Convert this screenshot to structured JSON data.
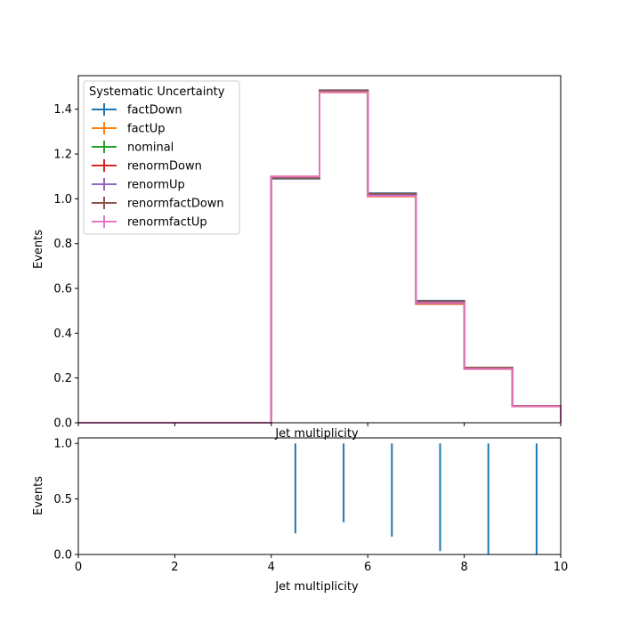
{
  "chart_data": [
    {
      "type": "line",
      "step": true,
      "xlabel": "Jet multiplicity",
      "ylabel": "Events",
      "xlim": [
        0,
        10
      ],
      "ylim": [
        0,
        1.55
      ],
      "grid": false,
      "bin_edges": [
        0,
        1,
        2,
        3,
        4,
        5,
        6,
        7,
        8,
        9,
        10
      ],
      "yticks": [
        "0.0",
        "0.2",
        "0.4",
        "0.6",
        "0.8",
        "1.0",
        "1.2",
        "1.4"
      ],
      "ytick_values": [
        0,
        0.2,
        0.4,
        0.6,
        0.8,
        1.0,
        1.2,
        1.4
      ],
      "legend": {
        "title": "Systematic Uncertainty",
        "placement": "upper-left"
      },
      "series": [
        {
          "name": "factDown",
          "color": "#1f77b4",
          "values": [
            0,
            0,
            0,
            0,
            1.09,
            1.485,
            1.025,
            0.545,
            0.245,
            0.075
          ]
        },
        {
          "name": "factUp",
          "color": "#ff7f0e",
          "values": [
            0,
            0,
            0,
            0,
            1.1,
            1.475,
            1.01,
            0.53,
            0.24,
            0.073
          ]
        },
        {
          "name": "nominal",
          "color": "#2ca02c",
          "values": [
            0,
            0,
            0,
            0,
            1.095,
            1.48,
            1.018,
            0.538,
            0.243,
            0.074
          ]
        },
        {
          "name": "renormDown",
          "color": "#d62728",
          "values": [
            0,
            0,
            0,
            0,
            1.093,
            1.478,
            1.015,
            0.532,
            0.244,
            0.074
          ]
        },
        {
          "name": "renormUp",
          "color": "#9467bd",
          "values": [
            0,
            0,
            0,
            0,
            1.097,
            1.482,
            1.02,
            0.54,
            0.242,
            0.074
          ]
        },
        {
          "name": "renormfactDown",
          "color": "#8c564b",
          "values": [
            0,
            0,
            0,
            0,
            1.092,
            1.484,
            1.023,
            0.543,
            0.246,
            0.075
          ]
        },
        {
          "name": "renormfactUp",
          "color": "#e377c2",
          "values": [
            0,
            0,
            0,
            0,
            1.1,
            1.476,
            1.012,
            0.534,
            0.24,
            0.073
          ]
        }
      ]
    },
    {
      "type": "line",
      "xlabel": "Jet multiplicity",
      "ylabel": "Events",
      "xlim": [
        0,
        10
      ],
      "ylim": [
        0,
        1.05
      ],
      "grid": false,
      "xticks": [
        "0",
        "2",
        "4",
        "6",
        "8",
        "10"
      ],
      "xtick_values": [
        0,
        2,
        4,
        6,
        8,
        10
      ],
      "yticks": [
        "0.0",
        "0.5",
        "1.0"
      ],
      "ytick_values": [
        0,
        0.5,
        1.0
      ],
      "series": [
        {
          "color": "#1f77b4",
          "segments": [
            {
              "x": 4.5,
              "y0": 0.19,
              "y1": 1.0
            },
            {
              "x": 5.5,
              "y0": 0.29,
              "y1": 1.0
            },
            {
              "x": 6.5,
              "y0": 0.16,
              "y1": 1.0
            },
            {
              "x": 7.5,
              "y0": 0.03,
              "y1": 1.0
            },
            {
              "x": 8.5,
              "y0": 0.0,
              "y1": 1.0
            },
            {
              "x": 9.5,
              "y0": 0.0,
              "y1": 1.0
            }
          ]
        }
      ]
    }
  ]
}
